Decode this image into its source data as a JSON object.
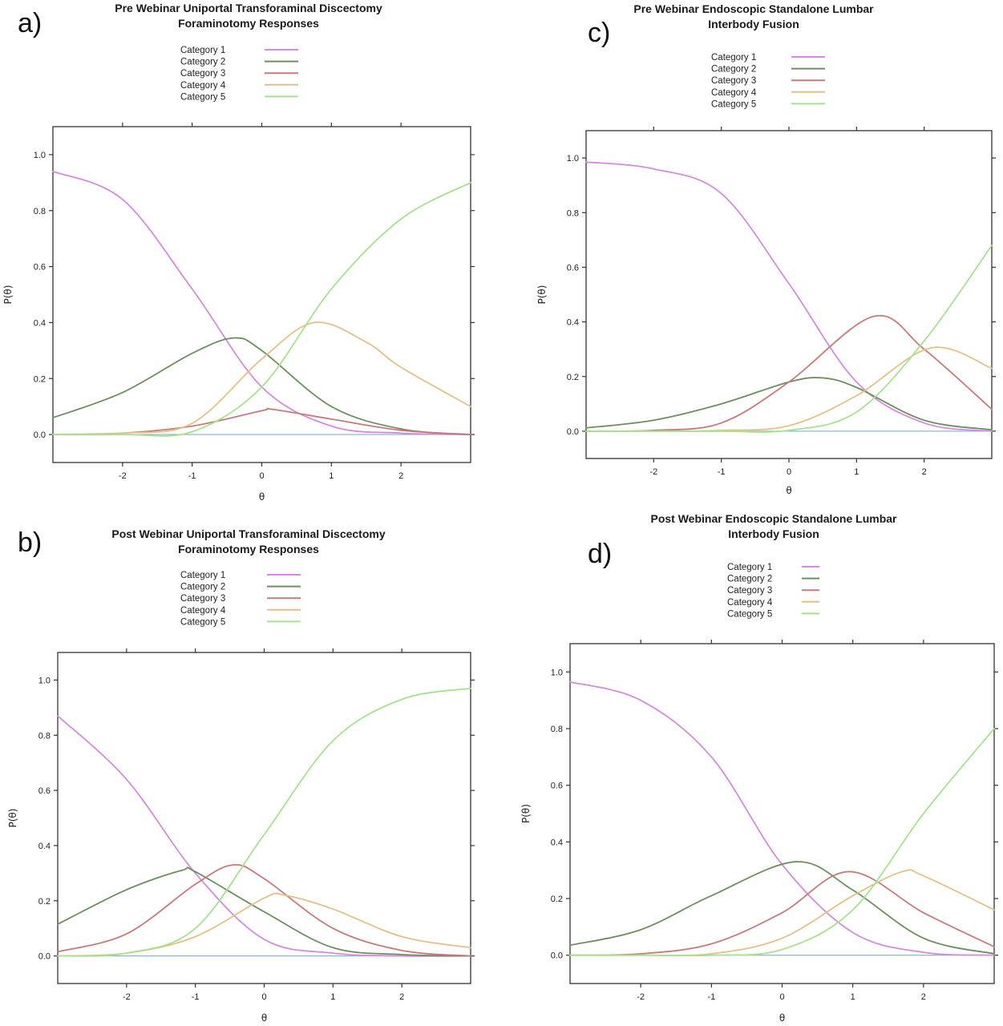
{
  "panels": [
    {
      "letter": "a)",
      "title": [
        "Pre Webinar Uniportal Transforaminal Discectomy",
        "Foraminotomy Responses"
      ]
    },
    {
      "letter": "b)",
      "title": [
        "Post Webinar Uniportal Transforaminal Discectomy",
        "Foraminotomy Responses"
      ]
    },
    {
      "letter": "c)",
      "title": [
        "Pre Webinar Endoscopic Standalone Lumbar",
        "Interbody Fusion"
      ]
    },
    {
      "letter": "d)",
      "title": [
        "Post Webinar Endoscopic Standalone Lumbar",
        "Interbody Fusion"
      ]
    }
  ],
  "colors": {
    "category_1": "#d58ae0",
    "category_2": "#6b8f5e",
    "category_3": "#c97a78",
    "category_4": "#e3c088",
    "category_5": "#a6e28e",
    "baseline": "#7fb0d8"
  },
  "chart_data": [
    {
      "type": "line",
      "title": "Pre Webinar Uniportal Transforaminal Discectomy Foraminotomy Responses",
      "xlabel": "θ",
      "ylabel": "P(θ)",
      "xlim": [
        -3,
        3
      ],
      "ylim": [
        -0.1,
        1.1
      ],
      "xticks": [
        -2,
        -1,
        0,
        1,
        2
      ],
      "yticks": [
        0.0,
        0.2,
        0.4,
        0.6,
        0.8,
        1.0
      ],
      "legend_position": "top",
      "series": [
        {
          "name": "Category 1",
          "points": [
            [
              -3,
              0.94
            ],
            [
              -2,
              0.84
            ],
            [
              -1,
              0.52
            ],
            [
              0,
              0.17
            ],
            [
              1,
              0.03
            ],
            [
              2,
              0.005
            ],
            [
              3,
              0.0
            ]
          ]
        },
        {
          "name": "Category 2",
          "points": [
            [
              -3,
              0.06
            ],
            [
              -2,
              0.15
            ],
            [
              -1,
              0.29
            ],
            [
              -0.4,
              0.345
            ],
            [
              0,
              0.3
            ],
            [
              1,
              0.1
            ],
            [
              2,
              0.02
            ],
            [
              3,
              0.0
            ]
          ]
        },
        {
          "name": "Category 3",
          "points": [
            [
              -3,
              0.0
            ],
            [
              -2,
              0.005
            ],
            [
              -1,
              0.03
            ],
            [
              0,
              0.085
            ],
            [
              0.15,
              0.09
            ],
            [
              1,
              0.055
            ],
            [
              2,
              0.015
            ],
            [
              3,
              0.0
            ]
          ]
        },
        {
          "name": "Category 4",
          "points": [
            [
              -3,
              0.0
            ],
            [
              -2,
              0.005
            ],
            [
              -1,
              0.04
            ],
            [
              0,
              0.27
            ],
            [
              0.75,
              0.4
            ],
            [
              1.5,
              0.33
            ],
            [
              2,
              0.24
            ],
            [
              3,
              0.1
            ]
          ]
        },
        {
          "name": "Category 5",
          "points": [
            [
              -3,
              0.0
            ],
            [
              -2,
              0.0
            ],
            [
              -1,
              0.01
            ],
            [
              0,
              0.17
            ],
            [
              1,
              0.52
            ],
            [
              2,
              0.77
            ],
            [
              3,
              0.9
            ]
          ]
        }
      ]
    },
    {
      "type": "line",
      "title": "Post Webinar Uniportal Transforaminal Discectomy Foraminotomy Responses",
      "xlabel": "θ",
      "ylabel": "P(θ)",
      "xlim": [
        -3,
        3
      ],
      "ylim": [
        -0.1,
        1.1
      ],
      "xticks": [
        -2,
        -1,
        0,
        1,
        2
      ],
      "yticks": [
        0.0,
        0.2,
        0.4,
        0.6,
        0.8,
        1.0
      ],
      "legend_position": "top",
      "series": [
        {
          "name": "Category 1",
          "points": [
            [
              -3,
              0.87
            ],
            [
              -2,
              0.64
            ],
            [
              -1,
              0.3
            ],
            [
              0,
              0.06
            ],
            [
              1,
              0.01
            ],
            [
              2,
              0.0
            ],
            [
              3,
              0.0
            ]
          ]
        },
        {
          "name": "Category 2",
          "points": [
            [
              -3,
              0.115
            ],
            [
              -2,
              0.24
            ],
            [
              -1.2,
              0.31
            ],
            [
              -1,
              0.305
            ],
            [
              0,
              0.16
            ],
            [
              1,
              0.03
            ],
            [
              2,
              0.005
            ],
            [
              3,
              0.0
            ]
          ]
        },
        {
          "name": "Category 3",
          "points": [
            [
              -3,
              0.015
            ],
            [
              -2,
              0.08
            ],
            [
              -1,
              0.26
            ],
            [
              -0.45,
              0.33
            ],
            [
              0,
              0.28
            ],
            [
              1,
              0.1
            ],
            [
              2,
              0.02
            ],
            [
              3,
              0.0
            ]
          ]
        },
        {
          "name": "Category 4",
          "points": [
            [
              -3,
              0.0
            ],
            [
              -2,
              0.01
            ],
            [
              -1,
              0.07
            ],
            [
              0,
              0.21
            ],
            [
              0.3,
              0.22
            ],
            [
              1,
              0.17
            ],
            [
              2,
              0.07
            ],
            [
              3,
              0.03
            ]
          ]
        },
        {
          "name": "Category 5",
          "points": [
            [
              -3,
              0.0
            ],
            [
              -2,
              0.01
            ],
            [
              -1,
              0.1
            ],
            [
              0,
              0.44
            ],
            [
              1,
              0.78
            ],
            [
              2,
              0.93
            ],
            [
              3,
              0.97
            ]
          ]
        }
      ]
    },
    {
      "type": "line",
      "title": "Pre Webinar Endoscopic Standalone Lumbar Interbody Fusion",
      "xlabel": "θ",
      "ylabel": "P(θ)",
      "xlim": [
        -3,
        3
      ],
      "ylim": [
        -0.1,
        1.1
      ],
      "xticks": [
        -2,
        -1,
        0,
        1,
        2
      ],
      "yticks": [
        0.0,
        0.2,
        0.4,
        0.6,
        0.8,
        1.0
      ],
      "legend_position": "top",
      "series": [
        {
          "name": "Category 1",
          "points": [
            [
              -3,
              0.985
            ],
            [
              -2,
              0.96
            ],
            [
              -1,
              0.87
            ],
            [
              0,
              0.54
            ],
            [
              1,
              0.18
            ],
            [
              2,
              0.03
            ],
            [
              3,
              0.0
            ]
          ]
        },
        {
          "name": "Category 2",
          "points": [
            [
              -3,
              0.012
            ],
            [
              -2,
              0.04
            ],
            [
              -1,
              0.1
            ],
            [
              0,
              0.18
            ],
            [
              0.5,
              0.195
            ],
            [
              1,
              0.16
            ],
            [
              2,
              0.04
            ],
            [
              3,
              0.005
            ]
          ]
        },
        {
          "name": "Category 3",
          "points": [
            [
              -3,
              0.0
            ],
            [
              -2,
              0.003
            ],
            [
              -1,
              0.03
            ],
            [
              0,
              0.18
            ],
            [
              1.25,
              0.42
            ],
            [
              2,
              0.3
            ],
            [
              3,
              0.08
            ]
          ]
        },
        {
          "name": "Category 4",
          "points": [
            [
              -3,
              0.0
            ],
            [
              -2,
              0.0
            ],
            [
              -1,
              0.003
            ],
            [
              0,
              0.02
            ],
            [
              1,
              0.13
            ],
            [
              2.1,
              0.305
            ],
            [
              3,
              0.23
            ]
          ]
        },
        {
          "name": "Category 5",
          "points": [
            [
              -3,
              0.0
            ],
            [
              -2,
              0.0
            ],
            [
              -1,
              0.0
            ],
            [
              0,
              0.003
            ],
            [
              1,
              0.07
            ],
            [
              2,
              0.33
            ],
            [
              3,
              0.68
            ]
          ]
        }
      ]
    },
    {
      "type": "line",
      "title": "Post Webinar Endoscopic Standalone Lumbar Interbody Fusion",
      "xlabel": "θ",
      "ylabel": "P(θ)",
      "xlim": [
        -3,
        3
      ],
      "ylim": [
        -0.1,
        1.1
      ],
      "xticks": [
        -2,
        -1,
        0,
        1,
        2
      ],
      "yticks": [
        0.0,
        0.2,
        0.4,
        0.6,
        0.8,
        1.0
      ],
      "legend_position": "top",
      "series": [
        {
          "name": "Category 1",
          "points": [
            [
              -3,
              0.965
            ],
            [
              -2,
              0.9
            ],
            [
              -1,
              0.7
            ],
            [
              0,
              0.32
            ],
            [
              1,
              0.08
            ],
            [
              2,
              0.01
            ],
            [
              3,
              0.0
            ]
          ]
        },
        {
          "name": "Category 2",
          "points": [
            [
              -3,
              0.035
            ],
            [
              -2,
              0.09
            ],
            [
              -1,
              0.21
            ],
            [
              0.2,
              0.33
            ],
            [
              1,
              0.23
            ],
            [
              2,
              0.06
            ],
            [
              3,
              0.005
            ]
          ]
        },
        {
          "name": "Category 3",
          "points": [
            [
              -3,
              0.0
            ],
            [
              -2,
              0.005
            ],
            [
              -1,
              0.04
            ],
            [
              0,
              0.15
            ],
            [
              0.95,
              0.295
            ],
            [
              2,
              0.15
            ],
            [
              3,
              0.03
            ]
          ]
        },
        {
          "name": "Category 4",
          "points": [
            [
              -3,
              0.0
            ],
            [
              -2,
              0.0
            ],
            [
              -1,
              0.005
            ],
            [
              0,
              0.06
            ],
            [
              1,
              0.21
            ],
            [
              1.7,
              0.295
            ],
            [
              2,
              0.28
            ],
            [
              3,
              0.16
            ]
          ]
        },
        {
          "name": "Category 5",
          "points": [
            [
              -3,
              0.0
            ],
            [
              -2,
              0.0
            ],
            [
              -1,
              0.0
            ],
            [
              0,
              0.02
            ],
            [
              1,
              0.16
            ],
            [
              2,
              0.5
            ],
            [
              3,
              0.8
            ]
          ]
        }
      ]
    }
  ]
}
